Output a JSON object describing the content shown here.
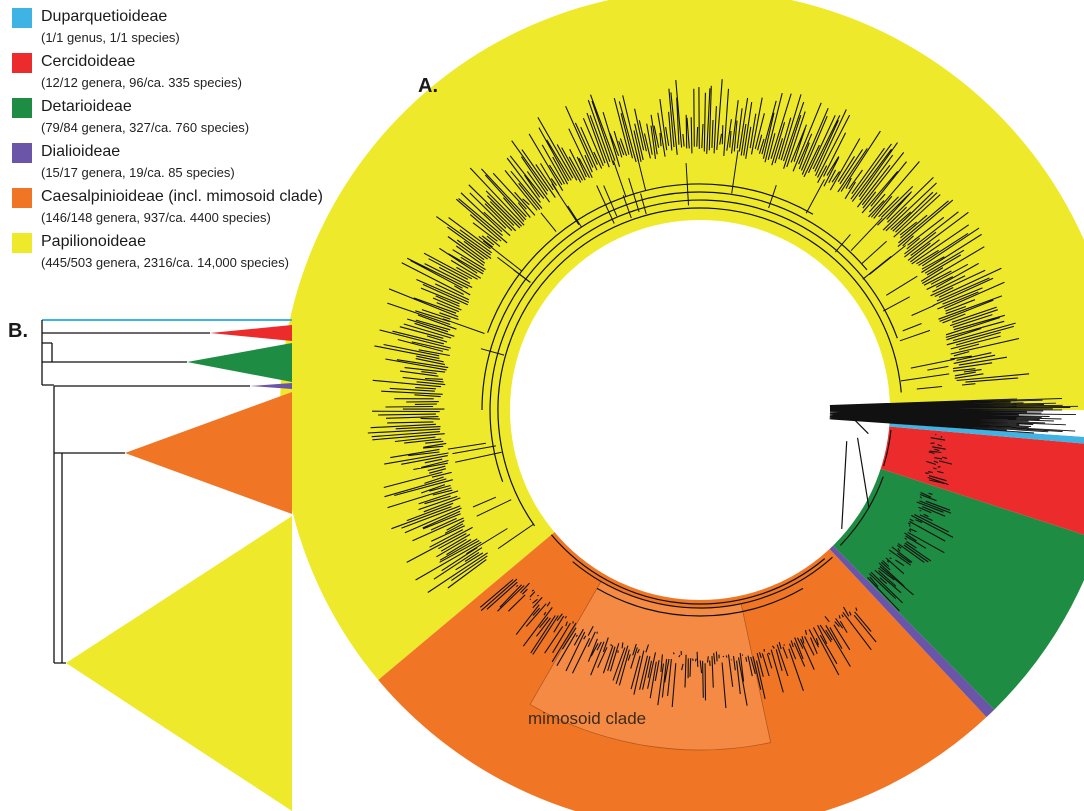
{
  "legend": {
    "items": [
      {
        "id": "duparquetioideae",
        "name": "Duparquetioideae",
        "detail": "(1/1 genus, 1/1 species)",
        "color": "#3fb3e3"
      },
      {
        "id": "cercidoideae",
        "name": "Cercidoideae",
        "detail": "(12/12 genera, 96/ca. 335 species)",
        "color": "#ec2c2c"
      },
      {
        "id": "detarioideae",
        "name": "Detarioideae",
        "detail": "(79/84 genera, 327/ca. 760 species)",
        "color": "#1f8c43"
      },
      {
        "id": "dialioideae",
        "name": "Dialioideae",
        "detail": "(15/17 genera, 19/ca. 85 species)",
        "color": "#6a55a8"
      },
      {
        "id": "caesalpinioideae",
        "name": "Caesalpinioideae (incl. mimosoid clade)",
        "detail": "(146/148 genera, 937/ca. 4400 species)",
        "color": "#f07626"
      },
      {
        "id": "papilionoideae",
        "name": "Papilionoideae",
        "detail": "(445/503 genera, 2316/ca. 14,000 species)",
        "color": "#efe92b"
      }
    ]
  },
  "panel_a": {
    "label": "A.",
    "mimosoid_label": "mimosoid clade",
    "mimosoid_color": "#f58a45"
  },
  "panel_b": {
    "label": "B."
  }
}
